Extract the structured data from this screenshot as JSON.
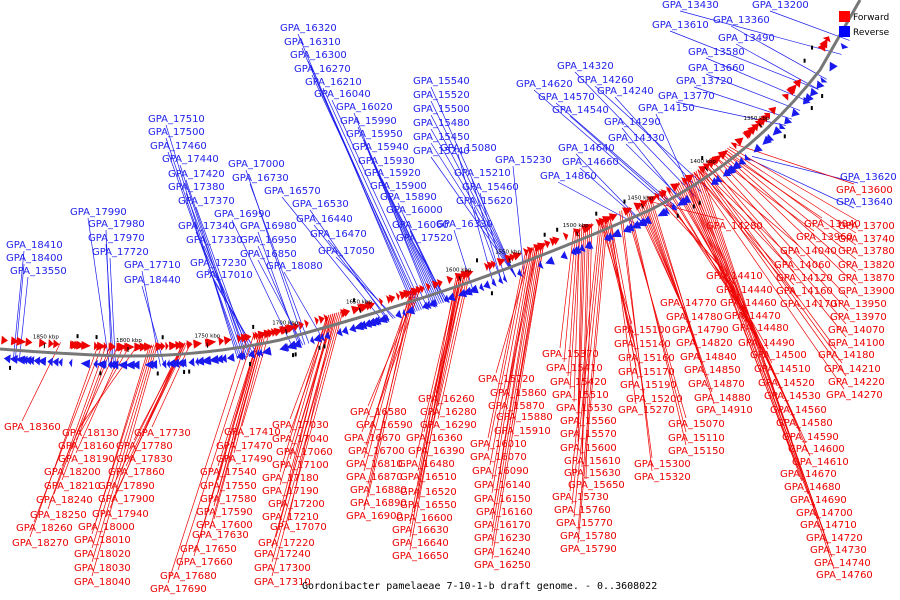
{
  "caption": "Gordonibacter pamelaeae 7-10-1-b draft genome. - 0..3608022",
  "legend": {
    "forward": "Forward",
    "reverse": "Reverse",
    "forward_color": "#ff0000",
    "reverse_color": "#0000ff"
  },
  "colors": {
    "forward": "#ee0000",
    "reverse": "#1a1aee",
    "axis": "#777777"
  },
  "ticks": [
    "1350 kbp",
    "1400 kbp",
    "1450 kbp",
    "1500 kbp",
    "1550 kbp",
    "1600 kbp",
    "1650 kbp",
    "1700 kbp",
    "1750 kbp",
    "1800 kbp",
    "1850 kbp"
  ],
  "reverse_labels": [
    "GPA_13430",
    "GPA_13200",
    "GPA_13610",
    "GPA_13360",
    "GPA_13490",
    "GPA_13580",
    "GPA_13660",
    "GPA_13720",
    "GPA_13770",
    "GPA_14320",
    "GPA_14260",
    "GPA_14620",
    "GPA_14570",
    "GPA_14240",
    "GPA_14540",
    "GPA_14150",
    "GPA_14290",
    "GPA_14330",
    "GPA_14640",
    "GPA_14660",
    "GPA_14860",
    "GPA_15540",
    "GPA_15520",
    "GPA_15500",
    "GPA_15480",
    "GPA_15450",
    "GPA_15240",
    "GPA_15080",
    "GPA_15230",
    "GPA_15210",
    "GPA_15460",
    "GPA_15620",
    "GPA_16330",
    "GPA_16320",
    "GPA_16310",
    "GPA_16300",
    "GPA_16270",
    "GPA_16210",
    "GPA_16040",
    "GPA_16020",
    "GPA_15990",
    "GPA_15950",
    "GPA_15940",
    "GPA_15930",
    "GPA_15920",
    "GPA_15900",
    "GPA_15890",
    "GPA_16000",
    "GPA_16060",
    "GPA_17520",
    "GPA_17510",
    "GPA_17500",
    "GPA_17460",
    "GPA_17440",
    "GPA_17420",
    "GPA_17380",
    "GPA_17370",
    "GPA_17340",
    "GPA_17330",
    "GPA_17230",
    "GPA_17010",
    "GPA_17000",
    "GPA_16730",
    "GPA_16570",
    "GPA_16530",
    "GPA_16440",
    "GPA_16470",
    "GPA_17050",
    "GPA_16990",
    "GPA_16980",
    "GPA_16950",
    "GPA_16850",
    "GPA_18080",
    "GPA_17990",
    "GPA_17980",
    "GPA_17970",
    "GPA_17720",
    "GPA_17710",
    "GPA_18440",
    "GPA_18410",
    "GPA_18400",
    "GPA_13550",
    "GPA_13620",
    "GPA_13640"
  ],
  "forward_labels": [
    "GPA_13600",
    "GPA_14280",
    "GPA_13940",
    "GPA_13960",
    "GPA_13700",
    "GPA_13740",
    "GPA_14040",
    "GPA_14060",
    "GPA_13780",
    "GPA_13820",
    "GPA_14120",
    "GPA_14160",
    "GPA_13870",
    "GPA_13900",
    "GPA_14170",
    "GPA_13950",
    "GPA_13970",
    "GPA_14410",
    "GPA_14440",
    "GPA_14460",
    "GPA_14470",
    "GPA_14480",
    "GPA_14070",
    "GPA_14100",
    "GPA_14180",
    "GPA_14490",
    "GPA_14500",
    "GPA_14510",
    "GPA_14210",
    "GPA_14220",
    "GPA_14520",
    "GPA_14530",
    "GPA_14270",
    "GPA_14560",
    "GPA_14580",
    "GPA_14590",
    "GPA_14600",
    "GPA_14610",
    "GPA_14670",
    "GPA_14680",
    "GPA_14690",
    "GPA_14700",
    "GPA_14710",
    "GPA_14720",
    "GPA_14730",
    "GPA_14740",
    "GPA_14760",
    "GPA_14770",
    "GPA_14780",
    "GPA_14790",
    "GPA_14820",
    "GPA_14840",
    "GPA_14850",
    "GPA_14870",
    "GPA_14880",
    "GPA_14910",
    "GPA_15100",
    "GPA_15140",
    "GPA_15160",
    "GPA_15170",
    "GPA_15190",
    "GPA_15200",
    "GPA_15270",
    "GPA_15070",
    "GPA_15110",
    "GPA_15150",
    "GPA_15300",
    "GPA_15320",
    "GPA_15370",
    "GPA_15410",
    "GPA_15420",
    "GPA_15510",
    "GPA_15530",
    "GPA_15560",
    "GPA_15570",
    "GPA_15600",
    "GPA_15610",
    "GPA_15630",
    "GPA_15650",
    "GPA_15720",
    "GPA_15860",
    "GPA_15870",
    "GPA_15880",
    "GPA_15910",
    "GPA_16010",
    "GPA_16070",
    "GPA_16090",
    "GPA_16140",
    "GPA_16150",
    "GPA_16160",
    "GPA_16170",
    "GPA_16230",
    "GPA_16240",
    "GPA_16250",
    "GPA_15730",
    "GPA_15760",
    "GPA_15770",
    "GPA_15780",
    "GPA_15790",
    "GPA_16260",
    "GPA_16280",
    "GPA_16290",
    "GPA_16360",
    "GPA_16390",
    "GPA_16480",
    "GPA_16510",
    "GPA_16520",
    "GPA_16550",
    "GPA_16600",
    "GPA_16630",
    "GPA_16640",
    "GPA_16650",
    "GPA_16580",
    "GPA_16590",
    "GPA_16670",
    "GPA_16700",
    "GPA_16810",
    "GPA_16870",
    "GPA_16880",
    "GPA_16890",
    "GPA_16900",
    "GPA_17030",
    "GPA_17040",
    "GPA_17060",
    "GPA_17100",
    "GPA_17180",
    "GPA_17190",
    "GPA_17200",
    "GPA_17210",
    "GPA_17070",
    "GPA_17220",
    "GPA_17240",
    "GPA_17300",
    "GPA_17310",
    "GPA_17410",
    "GPA_17470",
    "GPA_17490",
    "GPA_17540",
    "GPA_17550",
    "GPA_17580",
    "GPA_17590",
    "GPA_17600",
    "GPA_17630",
    "GPA_17650",
    "GPA_17660",
    "GPA_17680",
    "GPA_17690",
    "GPA_17730",
    "GPA_17780",
    "GPA_17830",
    "GPA_17860",
    "GPA_17890",
    "GPA_17900",
    "GPA_17940",
    "GPA_18130",
    "GPA_18160",
    "GPA_18190",
    "GPA_18200",
    "GPA_18210",
    "GPA_18240",
    "GPA_18250",
    "GPA_18260",
    "GPA_18270",
    "GPA_18000",
    "GPA_18010",
    "GPA_18020",
    "GPA_18030",
    "GPA_18040",
    "GPA_18360"
  ]
}
